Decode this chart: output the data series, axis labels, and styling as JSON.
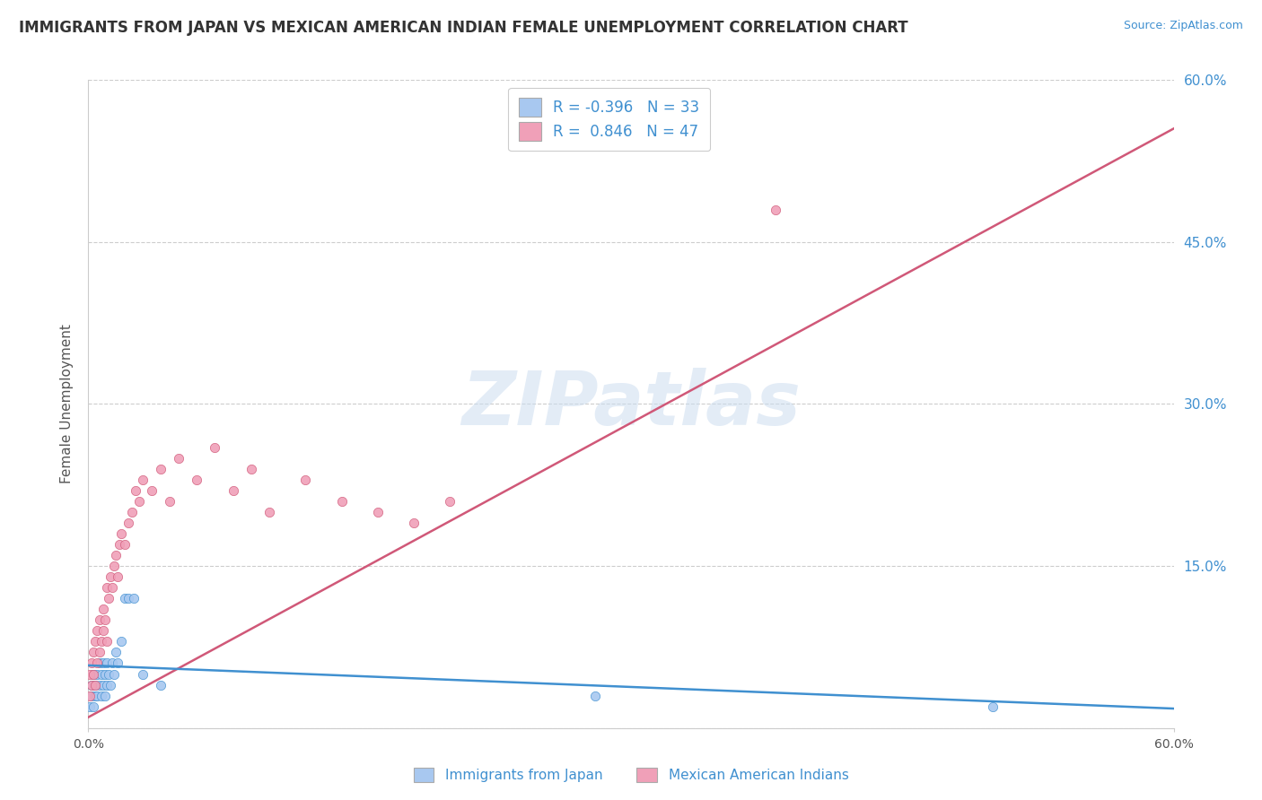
{
  "title": "IMMIGRANTS FROM JAPAN VS MEXICAN AMERICAN INDIAN FEMALE UNEMPLOYMENT CORRELATION CHART",
  "source": "Source: ZipAtlas.com",
  "ylabel": "Female Unemployment",
  "xlim": [
    0.0,
    0.6
  ],
  "ylim": [
    0.0,
    0.6
  ],
  "ytick_positions": [
    0.0,
    0.15,
    0.3,
    0.45,
    0.6
  ],
  "xtick_positions": [
    0.0,
    0.6
  ],
  "watermark": "ZIPatlas",
  "background_color": "#ffffff",
  "grid_color": "#c8c8c8",
  "blue_color": "#a8c8f0",
  "pink_color": "#f0a0b8",
  "blue_line_color": "#4090d0",
  "pink_line_color": "#d05878",
  "legend_R1": "-0.396",
  "legend_N1": "33",
  "legend_R2": "0.846",
  "legend_N2": "47",
  "label1": "Immigrants from Japan",
  "label2": "Mexican American Indians",
  "title_fontsize": 12,
  "axis_label_fontsize": 11,
  "tick_fontsize": 10,
  "blue_scatter_x": [
    0.001,
    0.002,
    0.002,
    0.003,
    0.003,
    0.004,
    0.004,
    0.005,
    0.005,
    0.006,
    0.006,
    0.007,
    0.007,
    0.008,
    0.008,
    0.009,
    0.009,
    0.01,
    0.01,
    0.011,
    0.012,
    0.013,
    0.014,
    0.015,
    0.016,
    0.018,
    0.02,
    0.022,
    0.025,
    0.03,
    0.04,
    0.28,
    0.5
  ],
  "blue_scatter_y": [
    0.02,
    0.03,
    0.04,
    0.02,
    0.05,
    0.03,
    0.04,
    0.05,
    0.03,
    0.04,
    0.06,
    0.03,
    0.05,
    0.04,
    0.06,
    0.05,
    0.03,
    0.06,
    0.04,
    0.05,
    0.04,
    0.06,
    0.05,
    0.07,
    0.06,
    0.08,
    0.12,
    0.12,
    0.12,
    0.05,
    0.04,
    0.03,
    0.02
  ],
  "pink_scatter_x": [
    0.001,
    0.001,
    0.002,
    0.002,
    0.003,
    0.003,
    0.004,
    0.004,
    0.005,
    0.005,
    0.006,
    0.006,
    0.007,
    0.008,
    0.008,
    0.009,
    0.01,
    0.01,
    0.011,
    0.012,
    0.013,
    0.014,
    0.015,
    0.016,
    0.017,
    0.018,
    0.02,
    0.022,
    0.024,
    0.026,
    0.028,
    0.03,
    0.035,
    0.04,
    0.045,
    0.05,
    0.06,
    0.07,
    0.08,
    0.09,
    0.1,
    0.12,
    0.14,
    0.16,
    0.18,
    0.2,
    0.38
  ],
  "pink_scatter_y": [
    0.03,
    0.05,
    0.04,
    0.06,
    0.05,
    0.07,
    0.04,
    0.08,
    0.06,
    0.09,
    0.07,
    0.1,
    0.08,
    0.09,
    0.11,
    0.1,
    0.08,
    0.13,
    0.12,
    0.14,
    0.13,
    0.15,
    0.16,
    0.14,
    0.17,
    0.18,
    0.17,
    0.19,
    0.2,
    0.22,
    0.21,
    0.23,
    0.22,
    0.24,
    0.21,
    0.25,
    0.23,
    0.26,
    0.22,
    0.24,
    0.2,
    0.23,
    0.21,
    0.2,
    0.19,
    0.21,
    0.48
  ],
  "pink_line_x0": 0.0,
  "pink_line_y0": 0.01,
  "pink_line_x1": 0.6,
  "pink_line_y1": 0.555,
  "blue_line_x0": 0.0,
  "blue_line_y0": 0.058,
  "blue_line_x1": 0.6,
  "blue_line_y1": 0.018
}
